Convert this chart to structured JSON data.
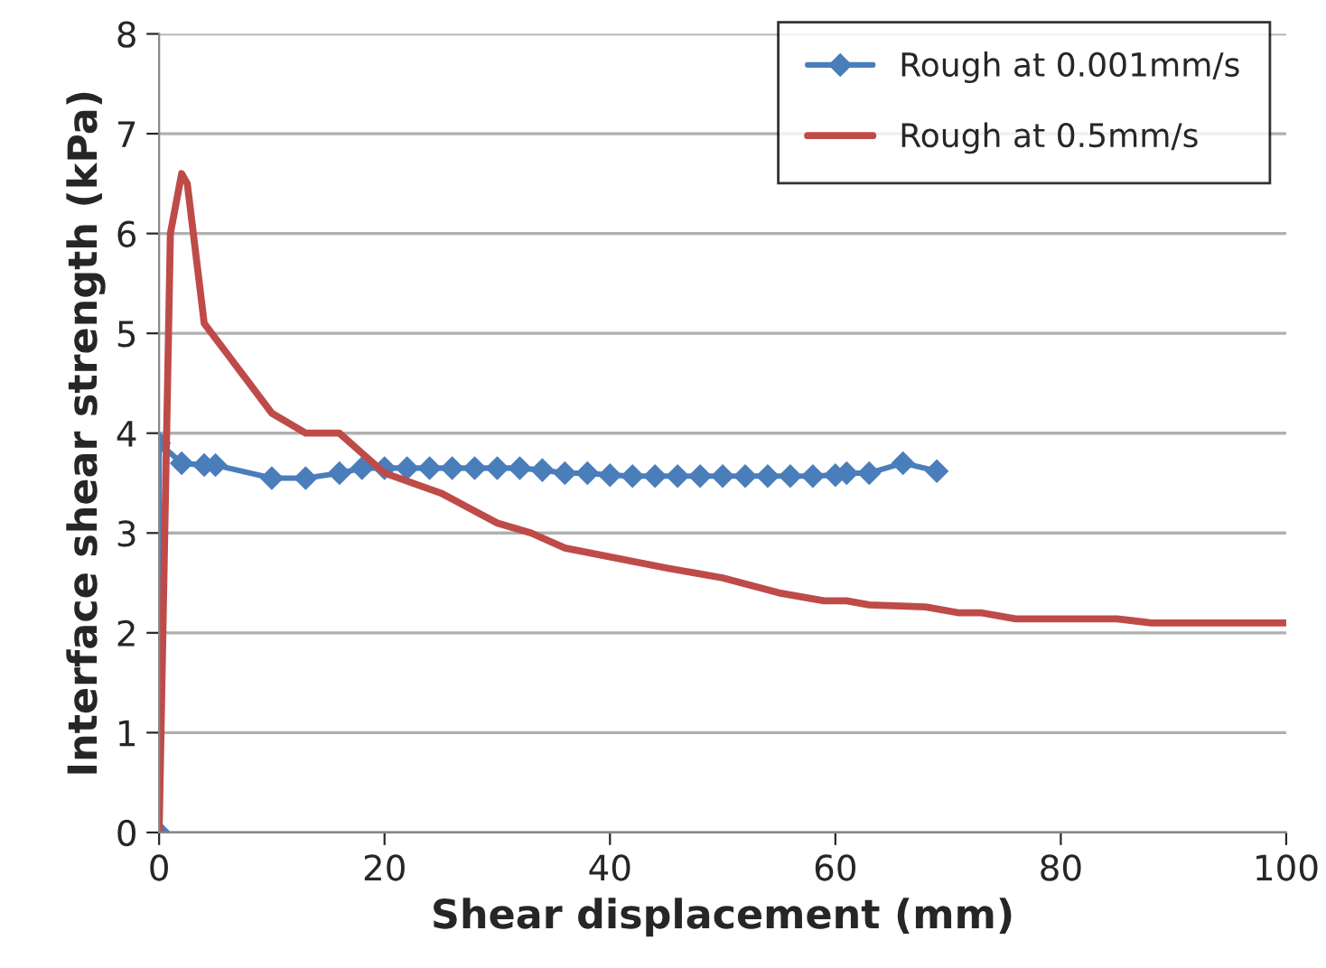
{
  "chart_data": {
    "type": "line",
    "xlabel": "Shear displacement (mm)",
    "ylabel": "Interface shear strength (kPa)",
    "xlim": [
      0,
      100
    ],
    "xticks": [
      0,
      20,
      40,
      60,
      80,
      100
    ],
    "ylim": [
      0,
      8
    ],
    "yticks": [
      0,
      1,
      2,
      3,
      4,
      5,
      6,
      7,
      8
    ],
    "grid": "y",
    "legend": "top right",
    "series": [
      {
        "name": "Rough at 0.001mm/s",
        "color": "#4a7ebb",
        "marker": "diamond",
        "x": [
          0,
          0,
          2,
          4,
          5,
          10,
          13,
          16,
          18,
          20,
          22,
          24,
          26,
          28,
          30,
          32,
          34,
          36,
          38,
          40,
          42,
          44,
          46,
          48,
          50,
          52,
          54,
          56,
          58,
          60,
          61,
          63,
          66,
          69
        ],
        "values": [
          0,
          3.9,
          3.7,
          3.68,
          3.68,
          3.55,
          3.55,
          3.6,
          3.65,
          3.65,
          3.65,
          3.65,
          3.65,
          3.65,
          3.65,
          3.65,
          3.63,
          3.6,
          3.6,
          3.58,
          3.57,
          3.57,
          3.57,
          3.57,
          3.57,
          3.57,
          3.57,
          3.57,
          3.57,
          3.58,
          3.6,
          3.6,
          3.7,
          3.62
        ]
      },
      {
        "name": "Rough at 0.5mm/s",
        "color": "#be4b48",
        "marker": "none",
        "x": [
          0,
          0.5,
          1,
          2,
          2.5,
          4,
          6,
          8,
          10,
          13,
          16,
          18,
          20,
          25,
          30,
          33,
          36,
          45,
          50,
          55,
          59,
          61,
          63,
          68,
          71,
          73,
          76,
          85,
          88,
          100
        ],
        "values": [
          0,
          3,
          6,
          6.6,
          6.5,
          5.1,
          4.8,
          4.5,
          4.2,
          4.0,
          4.0,
          3.8,
          3.6,
          3.4,
          3.1,
          3.0,
          2.85,
          2.65,
          2.55,
          2.4,
          2.32,
          2.32,
          2.28,
          2.26,
          2.2,
          2.2,
          2.14,
          2.14,
          2.1,
          2.1
        ]
      }
    ]
  }
}
